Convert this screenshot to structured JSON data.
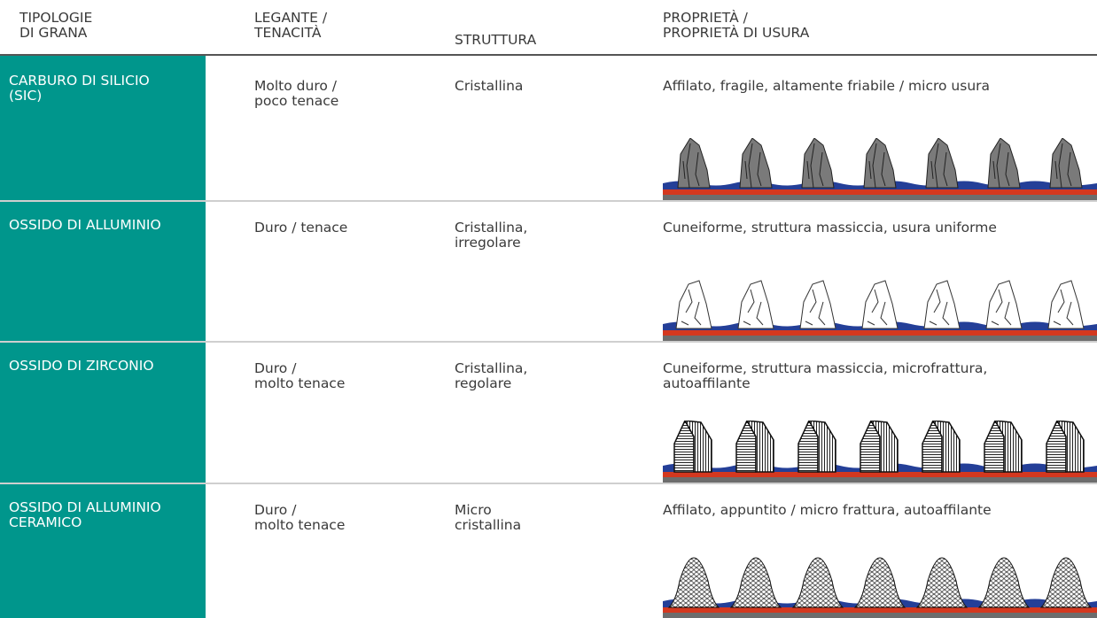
{
  "header": {
    "columns": [
      "TIPOLOGIE\nDI GRANA",
      "LEGANTE /\nTENACITÀ",
      "STRUTTURA",
      "PROPRIETÀ /\nPROPRIETÀ DI USURA"
    ]
  },
  "table": {
    "rows": [
      [
        "CARBURO DI SILICIO\n(SIC)",
        "Molto duro /\npoco tenace",
        "Cristallina",
        "Affilato, fragile, altamente friabile / micro usura"
      ],
      [
        "OSSIDO DI ALLUMINIO",
        "Duro / tenace",
        "Cristallina,\nirregolare",
        "Cuneiforme, struttura massiccia, usura uniforme"
      ],
      [
        "OSSIDO DI ZIRCONIO",
        "Duro /\nmolto tenace",
        "Cristallina,\nregolare",
        "Cuneiforme, struttura massiccia, microfrattura,\nautoaffilante"
      ],
      [
        "OSSIDO DI ALLUMINIO\nCERAMICO",
        "Duro /\nmolto tenace",
        "Micro\ncristallina",
        "Affilato, appuntito / micro frattura, autoaffilante"
      ]
    ]
  }
}
